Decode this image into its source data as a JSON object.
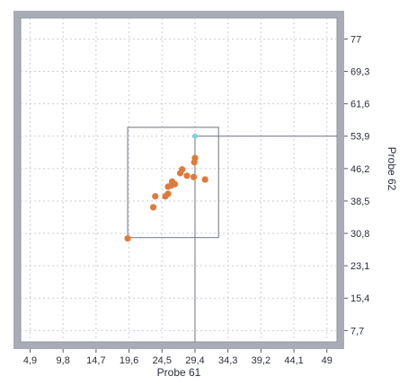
{
  "colors": {
    "frame": "#a9acb6",
    "plot_background": "#ffffff",
    "grid": "#c9ced8",
    "point": "#e07a38",
    "highlight_point": "#7fd3e6",
    "box": "#6f7480",
    "crosshair": "#6f7480",
    "text": "#2a2f3a"
  },
  "chart_data": {
    "type": "scatter",
    "xlabel": "Probe 61",
    "ylabel": "Probe 62",
    "xlim": [
      3.5,
      50.5
    ],
    "ylim": [
      5.0,
      82.0
    ],
    "grid": true,
    "x_ticks": [
      {
        "value": 4.9,
        "label": "4,9"
      },
      {
        "value": 9.8,
        "label": "9,8"
      },
      {
        "value": 14.7,
        "label": "14,7"
      },
      {
        "value": 19.6,
        "label": "19,6"
      },
      {
        "value": 24.5,
        "label": "24,5"
      },
      {
        "value": 29.4,
        "label": "29,4"
      },
      {
        "value": 34.3,
        "label": "34,3"
      },
      {
        "value": 39.2,
        "label": "39,2"
      },
      {
        "value": 44.1,
        "label": "44,1"
      },
      {
        "value": 49.0,
        "label": "49"
      }
    ],
    "y_ticks": [
      {
        "value": 7.7,
        "label": "7,7"
      },
      {
        "value": 15.4,
        "label": "15,4"
      },
      {
        "value": 23.1,
        "label": "23,1"
      },
      {
        "value": 30.8,
        "label": "30,8"
      },
      {
        "value": 38.5,
        "label": "38,5"
      },
      {
        "value": 46.2,
        "label": "46,2"
      },
      {
        "value": 53.9,
        "label": "53,9"
      },
      {
        "value": 61.6,
        "label": "61,6"
      },
      {
        "value": 69.3,
        "label": "69,3"
      },
      {
        "value": 77.0,
        "label": "77"
      }
    ],
    "points": [
      {
        "x": 19.4,
        "y": 29.6
      },
      {
        "x": 23.2,
        "y": 37.0
      },
      {
        "x": 23.5,
        "y": 39.6
      },
      {
        "x": 25.0,
        "y": 39.6
      },
      {
        "x": 25.4,
        "y": 40.2
      },
      {
        "x": 25.4,
        "y": 41.9
      },
      {
        "x": 25.9,
        "y": 42.2
      },
      {
        "x": 26.0,
        "y": 43.1
      },
      {
        "x": 26.4,
        "y": 42.5
      },
      {
        "x": 27.2,
        "y": 45.1
      },
      {
        "x": 27.5,
        "y": 46.0
      },
      {
        "x": 28.2,
        "y": 44.5
      },
      {
        "x": 29.2,
        "y": 44.2
      },
      {
        "x": 29.3,
        "y": 47.7
      },
      {
        "x": 29.4,
        "y": 48.7
      },
      {
        "x": 30.9,
        "y": 43.6
      }
    ],
    "highlight_point": {
      "x": 29.4,
      "y": 53.9
    },
    "selection_box": {
      "x_min": 19.4,
      "x_max": 32.9,
      "y_min": 29.8,
      "y_max": 56.0
    }
  }
}
